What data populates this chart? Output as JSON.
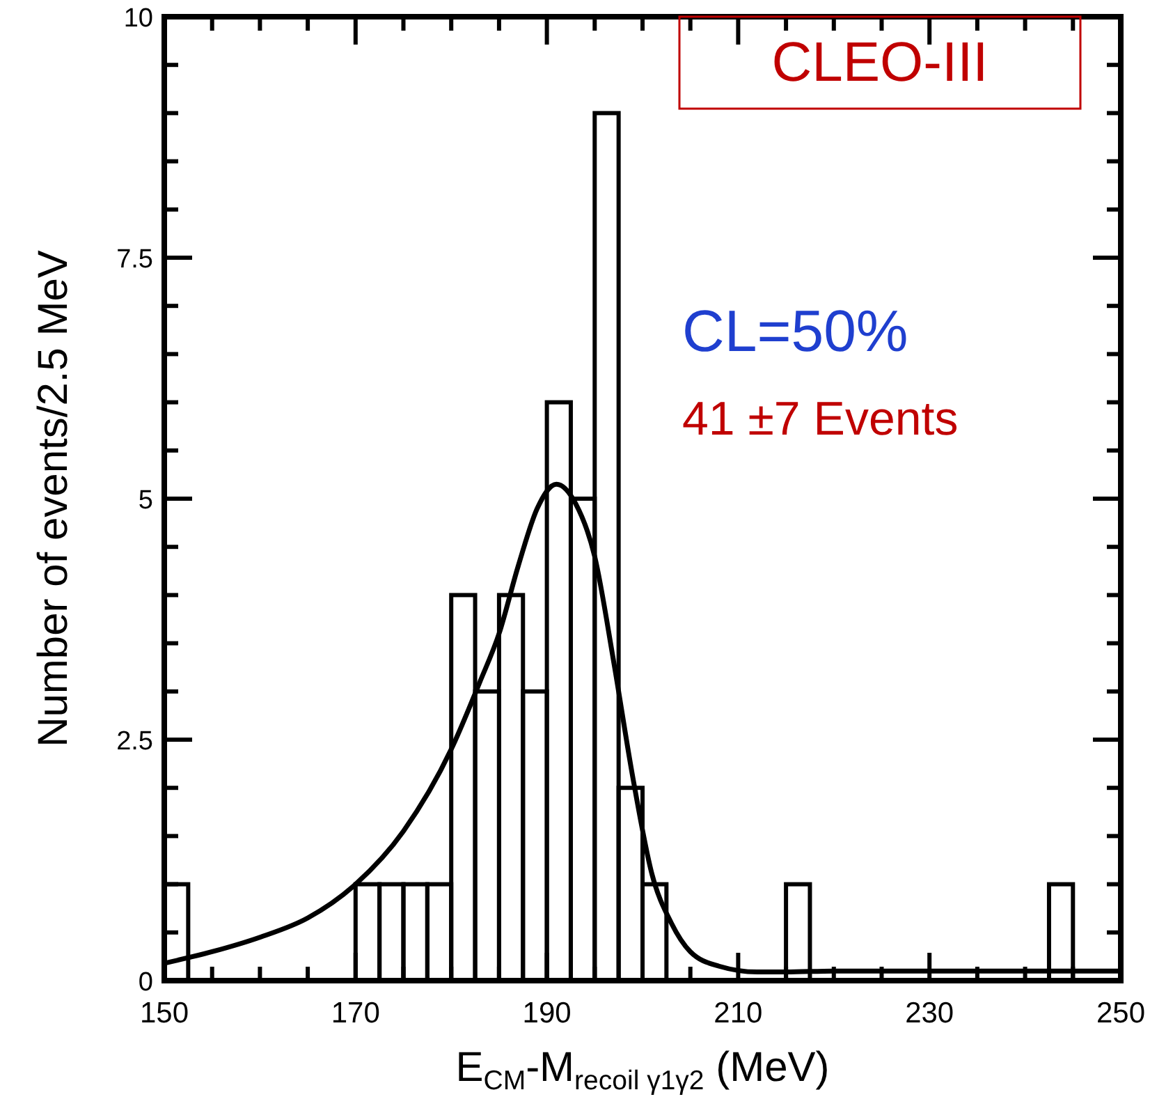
{
  "chart_data": {
    "type": "histogram",
    "xlabel": "E$_{CM}$-M$_{recoil γ1γ2}$ (MeV)",
    "ylabel": "Number of events/2.5 MeV",
    "annotations": [
      "CLEO-III",
      "CL=50%",
      "41 ±7 Events"
    ],
    "xlim": [
      150,
      250
    ],
    "ylim": [
      0,
      10
    ],
    "xticks": [
      150,
      {
        "value": 155,
        "label": null
      },
      {
        "value": 160,
        "label": null
      },
      {
        "value": 165,
        "label": null
      },
      170,
      {
        "value": 175,
        "label": null
      },
      {
        "value": 180,
        "label": null
      },
      {
        "value": 185,
        "label": null
      },
      190,
      {
        "value": 195,
        "label": null
      },
      {
        "value": 200,
        "label": null
      },
      {
        "value": 205,
        "label": null
      },
      210,
      {
        "value": 215,
        "label": null
      },
      {
        "value": 220,
        "label": null
      },
      {
        "value": 225,
        "label": null
      },
      230,
      {
        "value": 235,
        "label": null
      },
      {
        "value": 240,
        "label": null
      },
      {
        "value": 245,
        "label": null
      },
      250
    ],
    "yticks": [
      0,
      {
        "value": 0.5,
        "label": null
      },
      {
        "value": 1,
        "label": null
      },
      {
        "value": 1.5,
        "label": null
      },
      {
        "value": 2,
        "label": null
      },
      2.5,
      {
        "value": 3,
        "label": null
      },
      {
        "value": 3.5,
        "label": null
      },
      {
        "value": 4,
        "label": null
      },
      {
        "value": 4.5,
        "label": null
      },
      5,
      {
        "value": 5.5,
        "label": null
      },
      {
        "value": 6,
        "label": null
      },
      {
        "value": 6.5,
        "label": null
      },
      {
        "value": 7,
        "label": null
      },
      7.5,
      {
        "value": 8,
        "label": null
      },
      {
        "value": 8.5,
        "label": null
      },
      {
        "value": 9,
        "label": null
      },
      {
        "value": 9.5,
        "label": null
      },
      10
    ],
    "series": [
      {
        "color": "#000000",
        "bins": [
          150,
          152.5,
          155,
          157.5,
          160,
          162.5,
          165,
          167.5,
          170,
          172.5,
          175,
          177.5,
          180,
          182.5,
          185,
          187.5,
          190,
          192.5,
          195,
          197.5,
          200,
          202.5,
          205,
          207.5,
          210,
          212.5,
          215,
          217.5,
          220,
          222.5,
          225,
          227.5,
          230,
          232.5,
          235,
          237.5,
          240,
          242.5,
          245,
          247.5,
          250
        ],
        "values": [
          1,
          0,
          0,
          0,
          0,
          0,
          0,
          0,
          1,
          1,
          1,
          1,
          4,
          3,
          4,
          3,
          6,
          5,
          9,
          2,
          1,
          0,
          0,
          0,
          0,
          0,
          1,
          0,
          0,
          0,
          0,
          0,
          0,
          0,
          0,
          0,
          0,
          1,
          0,
          0
        ]
      },
      {
        "type": "line",
        "color": "#000000",
        "x": [
          150,
          155,
          160,
          165,
          170,
          175,
          180,
          183,
          185,
          187,
          189,
          191,
          193,
          195,
          197,
          199,
          201,
          203,
          205,
          208,
          212,
          215,
          220,
          250
        ],
        "values": [
          0.18,
          0.3,
          0.45,
          0.65,
          1.0,
          1.55,
          2.4,
          3.1,
          3.6,
          4.3,
          4.9,
          5.15,
          4.95,
          4.4,
          3.3,
          2.1,
          1.1,
          0.6,
          0.3,
          0.15,
          0.09,
          0.09,
          0.1,
          0.1
        ]
      }
    ]
  }
}
